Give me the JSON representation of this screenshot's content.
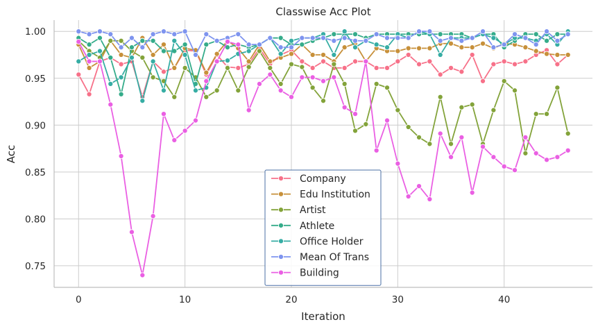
{
  "chart_data": {
    "type": "line",
    "title": "Classwise Acc Plot",
    "xlabel": "Iteration",
    "ylabel": "Acc",
    "xlim": [
      -2.3,
      48.3
    ],
    "ylim": [
      0.727,
      1.012
    ],
    "xticks": [
      0,
      10,
      20,
      30,
      40
    ],
    "yticks": [
      0.75,
      0.8,
      0.85,
      0.9,
      0.95,
      1.0
    ],
    "ytick_labels": [
      "0.75",
      "0.80",
      "0.85",
      "0.90",
      "0.95",
      "1.00"
    ],
    "grid": true,
    "legend_position": "lower-center",
    "x": [
      0,
      1,
      2,
      3,
      4,
      5,
      6,
      7,
      8,
      9,
      10,
      11,
      12,
      13,
      14,
      15,
      16,
      17,
      18,
      19,
      20,
      21,
      22,
      23,
      24,
      25,
      26,
      27,
      28,
      29,
      30,
      31,
      32,
      33,
      34,
      35,
      36,
      37,
      38,
      39,
      40,
      41,
      42,
      43,
      44,
      45,
      46
    ],
    "series": [
      {
        "name": "Company",
        "color": "#f77189",
        "values": [
          0.954,
          0.933,
          0.968,
          0.972,
          0.965,
          0.968,
          0.93,
          0.968,
          0.957,
          0.961,
          0.98,
          0.979,
          0.954,
          0.975,
          0.962,
          0.961,
          0.965,
          0.982,
          0.965,
          0.975,
          0.98,
          0.968,
          0.961,
          0.968,
          0.961,
          0.961,
          0.968,
          0.968,
          0.961,
          0.961,
          0.968,
          0.975,
          0.965,
          0.968,
          0.954,
          0.961,
          0.957,
          0.975,
          0.947,
          0.965,
          0.968,
          0.965,
          0.968,
          0.975,
          0.98,
          0.965,
          0.975
        ]
      },
      {
        "name": "Edu Institution",
        "color": "#c7903a",
        "values": [
          0.986,
          0.961,
          0.968,
          0.99,
          0.975,
          0.972,
          0.993,
          0.975,
          0.986,
          0.961,
          0.982,
          0.98,
          0.956,
          0.976,
          0.99,
          0.982,
          0.968,
          0.986,
          0.968,
          0.972,
          0.976,
          0.986,
          0.975,
          0.975,
          0.968,
          0.983,
          0.987,
          0.968,
          0.982,
          0.979,
          0.979,
          0.982,
          0.982,
          0.982,
          0.987,
          0.987,
          0.983,
          0.983,
          0.987,
          0.982,
          0.987,
          0.986,
          0.983,
          0.979,
          0.976,
          0.975,
          0.975
        ]
      },
      {
        "name": "Artist",
        "color": "#83a33a",
        "values": [
          0.99,
          0.979,
          0.972,
          0.99,
          0.99,
          0.979,
          0.972,
          0.951,
          0.947,
          0.93,
          0.961,
          0.951,
          0.93,
          0.937,
          0.961,
          0.937,
          0.962,
          0.979,
          0.961,
          0.944,
          0.965,
          0.962,
          0.94,
          0.926,
          0.965,
          0.944,
          0.894,
          0.901,
          0.944,
          0.94,
          0.916,
          0.898,
          0.887,
          0.88,
          0.93,
          0.88,
          0.919,
          0.922,
          0.88,
          0.916,
          0.947,
          0.937,
          0.87,
          0.912,
          0.912,
          0.94,
          0.891
        ]
      },
      {
        "name": "Athlete",
        "color": "#35ac8a",
        "values": [
          0.993,
          0.986,
          0.993,
          0.972,
          0.933,
          0.983,
          0.99,
          0.99,
          0.979,
          0.979,
          0.986,
          0.944,
          0.986,
          0.99,
          0.983,
          0.986,
          0.983,
          0.986,
          0.993,
          0.993,
          0.986,
          0.986,
          0.99,
          0.993,
          0.997,
          0.997,
          0.997,
          0.993,
          0.997,
          0.997,
          0.997,
          0.997,
          0.997,
          0.997,
          0.997,
          0.997,
          0.997,
          0.993,
          0.997,
          0.997,
          0.983,
          0.99,
          0.997,
          0.997,
          0.99,
          0.997,
          0.997
        ]
      },
      {
        "name": "Office Holder",
        "color": "#36ada4",
        "values": [
          0.968,
          0.975,
          0.979,
          0.944,
          0.951,
          0.972,
          0.926,
          0.968,
          0.937,
          0.99,
          0.975,
          0.937,
          0.94,
          0.968,
          0.969,
          0.976,
          0.979,
          0.986,
          0.993,
          0.976,
          0.99,
          0.993,
          0.993,
          0.997,
          0.975,
          1.0,
          0.983,
          0.99,
          0.986,
          0.983,
          0.997,
          0.993,
          1.0,
          0.997,
          0.975,
          0.993,
          0.993,
          0.993,
          0.997,
          0.993,
          0.986,
          0.993,
          0.993,
          0.99,
          0.997,
          0.986,
          1.0
        ]
      },
      {
        "name": "Mean Of Trans",
        "color": "#7e94ef",
        "values": [
          1.0,
          0.997,
          1.0,
          0.997,
          0.983,
          0.993,
          0.983,
          0.997,
          1.0,
          0.997,
          1.0,
          0.975,
          0.997,
          0.99,
          0.993,
          0.997,
          0.986,
          0.986,
          0.993,
          0.983,
          0.983,
          0.993,
          0.993,
          0.993,
          0.99,
          0.993,
          0.99,
          0.99,
          0.997,
          0.993,
          0.993,
          0.993,
          1.0,
          1.0,
          0.99,
          0.993,
          0.99,
          0.993,
          1.0,
          0.983,
          0.986,
          0.997,
          0.993,
          0.986,
          1.0,
          0.99,
          0.997
        ]
      },
      {
        "name": "Building",
        "color": "#ea5fe3",
        "values": [
          0.989,
          0.968,
          0.968,
          0.922,
          0.867,
          0.786,
          0.74,
          0.803,
          0.912,
          0.884,
          0.894,
          0.905,
          0.947,
          0.968,
          0.989,
          0.986,
          0.916,
          0.944,
          0.954,
          0.937,
          0.93,
          0.951,
          0.951,
          0.947,
          0.951,
          0.919,
          0.912,
          0.968,
          0.873,
          0.905,
          0.859,
          0.824,
          0.835,
          0.821,
          0.891,
          0.866,
          0.887,
          0.828,
          0.877,
          0.866,
          0.856,
          0.852,
          0.887,
          0.87,
          0.863,
          0.866,
          0.873
        ]
      }
    ]
  }
}
